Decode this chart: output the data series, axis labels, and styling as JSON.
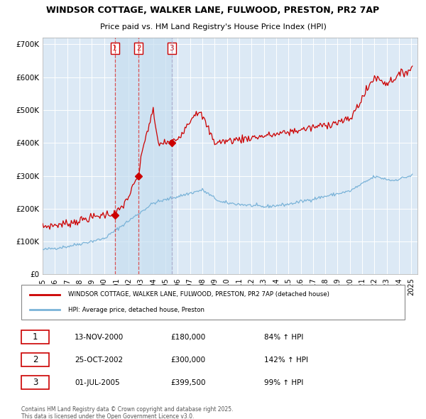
{
  "title1": "WINDSOR COTTAGE, WALKER LANE, FULWOOD, PRESTON, PR2 7AP",
  "title2": "Price paid vs. HM Land Registry's House Price Index (HPI)",
  "bg_color": "#dce9f5",
  "red_line_color": "#cc0000",
  "blue_line_color": "#7ab3d8",
  "purchase_dates": [
    2000.87,
    2002.82,
    2005.5
  ],
  "purchase_prices": [
    180000,
    300000,
    399500
  ],
  "purchase_labels": [
    "1",
    "2",
    "3"
  ],
  "legend_entries": [
    "WINDSOR COTTAGE, WALKER LANE, FULWOOD, PRESTON, PR2 7AP (detached house)",
    "HPI: Average price, detached house, Preston"
  ],
  "table_rows": [
    [
      "1",
      "13-NOV-2000",
      "£180,000",
      "84% ↑ HPI"
    ],
    [
      "2",
      "25-OCT-2002",
      "£300,000",
      "142% ↑ HPI"
    ],
    [
      "3",
      "01-JUL-2005",
      "£399,500",
      "99% ↑ HPI"
    ]
  ],
  "footer": "Contains HM Land Registry data © Crown copyright and database right 2025.\nThis data is licensed under the Open Government Licence v3.0.",
  "ylim": [
    0,
    720000
  ],
  "yticks": [
    0,
    100000,
    200000,
    300000,
    400000,
    500000,
    600000,
    700000
  ],
  "ytick_labels": [
    "£0",
    "£100K",
    "£200K",
    "£300K",
    "£400K",
    "£500K",
    "£600K",
    "£700K"
  ],
  "xlim": [
    1995,
    2025.5
  ],
  "xtick_years": [
    1995,
    1996,
    1997,
    1998,
    1999,
    2000,
    2001,
    2002,
    2003,
    2004,
    2005,
    2006,
    2007,
    2008,
    2009,
    2010,
    2011,
    2012,
    2013,
    2014,
    2015,
    2016,
    2017,
    2018,
    2019,
    2020,
    2021,
    2022,
    2023,
    2024,
    2025
  ]
}
